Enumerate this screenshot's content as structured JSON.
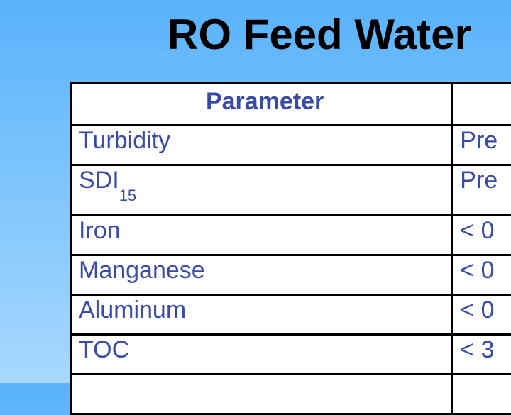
{
  "slide": {
    "title": "RO Feed Water"
  },
  "table": {
    "headers": [
      "Parameter",
      ""
    ],
    "rows": [
      {
        "parameter": "Turbidity",
        "value": "Pre"
      },
      {
        "parameter": "SDI",
        "subscript": "15",
        "value": "Pre"
      },
      {
        "parameter": "Iron",
        "value": "< 0"
      },
      {
        "parameter": "Manganese",
        "value": "< 0"
      },
      {
        "parameter": "Aluminum",
        "value": "< 0"
      },
      {
        "parameter": "TOC",
        "value": "< 3"
      },
      {
        "parameter": "",
        "value": ""
      }
    ]
  },
  "colors": {
    "background_top": "#5ab2fb",
    "background_bottom": "#a8d8fe",
    "table_text": "#3a4ba6",
    "title_text": "#000000"
  }
}
